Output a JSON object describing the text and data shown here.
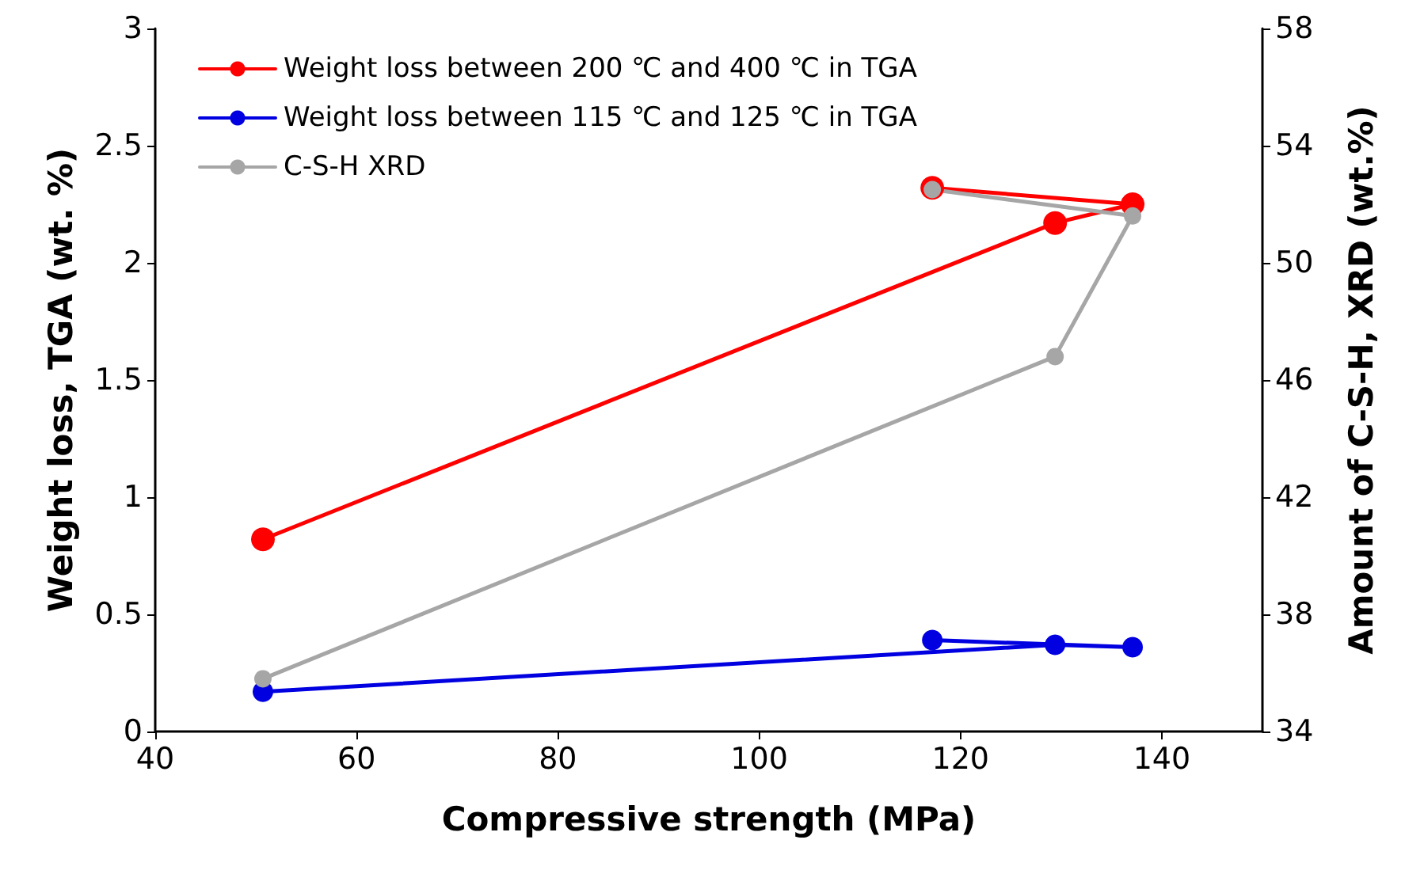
{
  "chart_data": {
    "type": "line",
    "xlabel": "Compressive strength (MPa)",
    "ylabel": "Weight loss, TGA (wt. %)",
    "y2label": "Amount of C-S-H, XRD (wt.%)",
    "xlim": [
      40,
      150
    ],
    "xticks": [
      40,
      60,
      80,
      100,
      120,
      140
    ],
    "ylim": [
      0,
      3
    ],
    "yticks": [
      0,
      0.5,
      1,
      1.5,
      2,
      2.5,
      3
    ],
    "y2lim": [
      34,
      58
    ],
    "y2ticks": [
      34,
      38,
      42,
      46,
      50,
      54,
      58
    ],
    "grid": false,
    "legend": "top left",
    "marker": "circle",
    "line_style": "solid",
    "series": [
      {
        "name": "Weight loss between 200 ℃ and 400 ℃ in TGA",
        "color": "#ff0000",
        "x": [
          50.7,
          129.4,
          137.1,
          117.2
        ],
        "values": [
          0.82,
          2.17,
          2.25,
          2.32
        ]
      },
      {
        "name": "Weight loss between 115 ℃ and 125 ℃ in TGA",
        "color": "#0000e0",
        "x": [
          50.7,
          129.4,
          137.1,
          117.2
        ],
        "values": [
          0.17,
          0.37,
          0.36,
          0.39
        ]
      },
      {
        "name": "C-S-H XRD",
        "color": "#a6a6a6",
        "axis": "y2",
        "x": [
          50.7,
          129.4,
          137.1,
          117.2
        ],
        "values": [
          35.8,
          46.8,
          51.6,
          52.5
        ]
      }
    ]
  }
}
